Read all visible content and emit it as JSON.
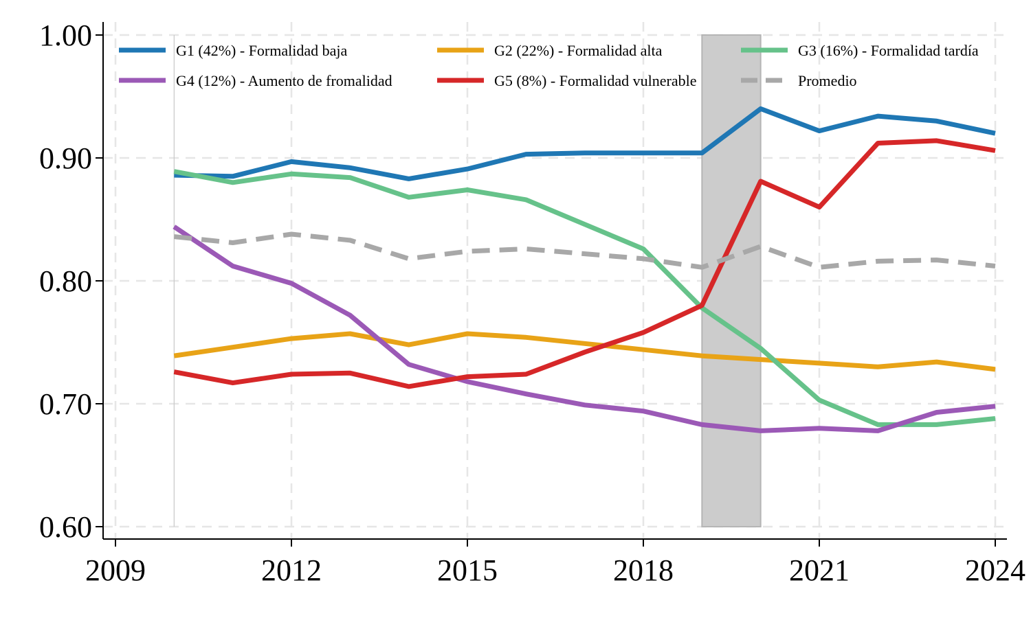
{
  "chart_data": {
    "type": "line",
    "title": "",
    "xlabel": "",
    "ylabel": "",
    "xlim": [
      2009,
      2024
    ],
    "ylim": [
      0.6,
      1.0
    ],
    "x_ticks": [
      2009,
      2012,
      2015,
      2018,
      2021,
      2024
    ],
    "x_tick_labels": [
      "2009",
      "2012",
      "2015",
      "2018",
      "2021",
      "2024"
    ],
    "y_ticks": [
      0.6,
      0.7,
      0.8,
      0.9,
      1.0
    ],
    "y_tick_labels": [
      "0.60",
      "0.70",
      "0.80",
      "0.90",
      "1.00"
    ],
    "grid": true,
    "legend_position": "top",
    "vertical_reference_line": 2010,
    "shaded_region": {
      "x_start": 2019,
      "x_end": 2020,
      "color": "#cccccc"
    },
    "x": [
      2010,
      2011,
      2012,
      2013,
      2014,
      2015,
      2016,
      2017,
      2018,
      2019,
      2020,
      2021,
      2022,
      2023,
      2024
    ],
    "series": [
      {
        "name": "G1 (42%) - Formalidad baja",
        "color": "#1f77b4",
        "dashed": false,
        "values": [
          0.886,
          0.885,
          0.897,
          0.892,
          0.883,
          0.891,
          0.903,
          0.904,
          0.904,
          0.904,
          0.94,
          0.922,
          0.934,
          0.93,
          0.92
        ]
      },
      {
        "name": "G2 (22%) - Formalidad alta",
        "color": "#e8a317",
        "dashed": false,
        "values": [
          0.739,
          0.746,
          0.753,
          0.757,
          0.748,
          0.757,
          0.754,
          0.749,
          0.744,
          0.739,
          0.736,
          0.733,
          0.73,
          0.734,
          0.728
        ]
      },
      {
        "name": "G3 (16%) - Formalidad tardía",
        "color": "#66c28a",
        "dashed": false,
        "values": [
          0.889,
          0.88,
          0.887,
          0.884,
          0.868,
          0.874,
          0.866,
          0.846,
          0.826,
          0.778,
          0.745,
          0.703,
          0.683,
          0.683,
          0.688
        ]
      },
      {
        "name": "G4 (12%) - Aumento de fromalidad",
        "color": "#9b59b6",
        "dashed": false,
        "values": [
          0.844,
          0.812,
          0.798,
          0.772,
          0.732,
          0.718,
          0.708,
          0.699,
          0.694,
          0.683,
          0.678,
          0.68,
          0.678,
          0.693,
          0.698
        ]
      },
      {
        "name": "G5 (8%) - Formalidad vulnerable",
        "color": "#d62728",
        "dashed": false,
        "values": [
          0.726,
          0.717,
          0.724,
          0.725,
          0.714,
          0.722,
          0.724,
          0.742,
          0.758,
          0.78,
          0.881,
          0.86,
          0.912,
          0.914,
          0.906
        ]
      },
      {
        "name": "Promedio",
        "color": "#a8a8a8",
        "dashed": true,
        "values": [
          0.836,
          0.831,
          0.838,
          0.833,
          0.818,
          0.824,
          0.826,
          0.822,
          0.818,
          0.811,
          0.828,
          0.811,
          0.816,
          0.817,
          0.812
        ]
      }
    ]
  }
}
